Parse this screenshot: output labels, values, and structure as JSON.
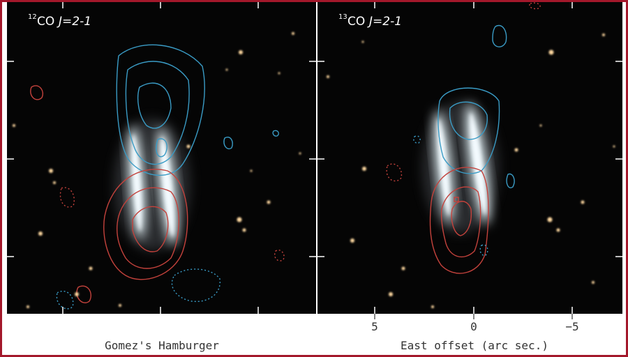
{
  "panels": [
    {
      "label": {
        "isotope": "12",
        "molecule": "CO",
        "transition": "J=2-1"
      }
    },
    {
      "label": {
        "isotope": "13",
        "molecule": "CO",
        "transition": "J=2-1"
      }
    }
  ],
  "caption": "Gomez's Hamburger",
  "x_axis": {
    "title": "East offset (arc sec.)",
    "tick_labels": [
      "5",
      "0",
      "−5"
    ]
  }
}
